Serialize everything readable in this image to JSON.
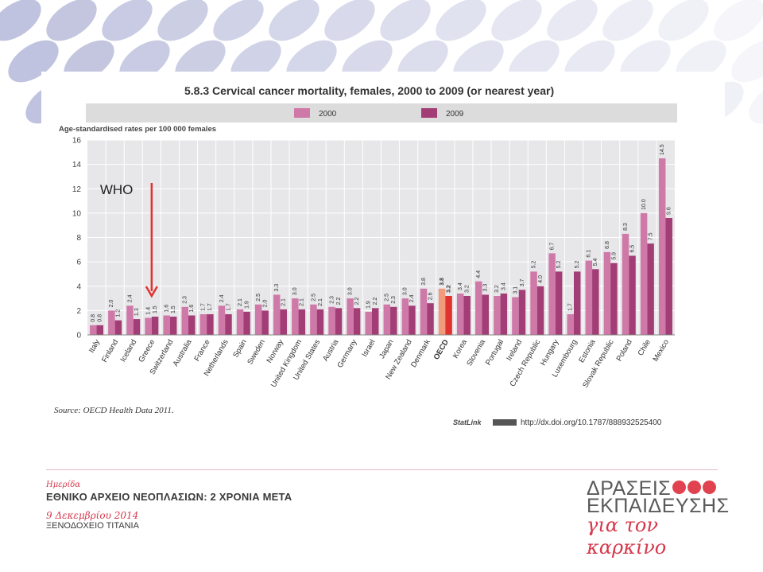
{
  "chart_data": {
    "type": "bar",
    "title": "5.8.3  Cervical cancer mortality, females, 2000 to 2009 (or nearest year)",
    "ylabel": "Age-standardised rates per 100 000 females",
    "ylim": [
      0,
      16
    ],
    "yticks": [
      0,
      2,
      4,
      6,
      8,
      10,
      12,
      14,
      16
    ],
    "grid": true,
    "legend_placement": "top",
    "categories": [
      "Italy",
      "Finland",
      "Iceland",
      "Greece",
      "Switzerland",
      "Australia",
      "France",
      "Netherlands",
      "Spain",
      "Sweden",
      "Norway",
      "United Kingdom",
      "United States",
      "Austria",
      "Germany",
      "Israel",
      "Japan",
      "New Zealand",
      "Denmark",
      "OECD",
      "Korea",
      "Slovenia",
      "Portugal",
      "Ireland",
      "Czech Republic",
      "Hungary",
      "Luxembourg",
      "Estonia",
      "Slovak Republic",
      "Poland",
      "Chile",
      "Mexico"
    ],
    "series": [
      {
        "name": "2000",
        "color": "#cf79a8",
        "highlight_color": "#f39a7c",
        "values": [
          0.8,
          2.0,
          2.4,
          1.4,
          1.6,
          2.3,
          1.7,
          2.4,
          2.1,
          2.5,
          3.3,
          3.0,
          2.5,
          2.3,
          3.0,
          1.9,
          2.5,
          3.0,
          3.8,
          3.8,
          3.4,
          4.4,
          3.2,
          3.1,
          5.2,
          6.7,
          1.7,
          6.1,
          6.8,
          8.3,
          10.0,
          14.5
        ]
      },
      {
        "name": "2009",
        "color": "#a23d76",
        "highlight_color": "#e0332f",
        "values": [
          0.8,
          1.2,
          1.3,
          1.5,
          1.5,
          1.6,
          1.7,
          1.7,
          1.9,
          2.0,
          2.1,
          2.1,
          2.1,
          2.2,
          2.2,
          2.2,
          2.3,
          2.4,
          2.6,
          3.2,
          3.2,
          3.3,
          3.4,
          3.7,
          4.0,
          5.2,
          5.2,
          5.4,
          5.9,
          6.5,
          7.5,
          9.6
        ]
      }
    ],
    "highlight_category": "OECD",
    "annotation": {
      "text": "WHO",
      "target": "Greece",
      "color": "#e0332f"
    },
    "source": "Source:  OECD Health Data 2011.",
    "statlink_label": "StatLink",
    "statlink_url": "http://dx.doi.org/10.1787/888932525400"
  },
  "footer": {
    "event_prefix": "Ημερίδα",
    "event_title": "ΕΘΝΙΚΟ ΑΡΧΕΙΟ ΝΕΟΠΛΑΣΙΩΝ: 2 ΧΡΟΝΙΑ ΜΕΤΑ",
    "event_date": "9 Δεκεμβρίου 2014",
    "event_venue": "ΞΕΝΟΔΟΧΕΙΟ ΤΙΤΑΝΙΑ"
  },
  "logo": {
    "line1": "ΔΡΑΣΕΙΣ",
    "line2": "ΕΚΠΑΙΔΕΥΣΗΣ",
    "line3": "για τον καρκίνο",
    "dot_color": "#e0424f"
  }
}
